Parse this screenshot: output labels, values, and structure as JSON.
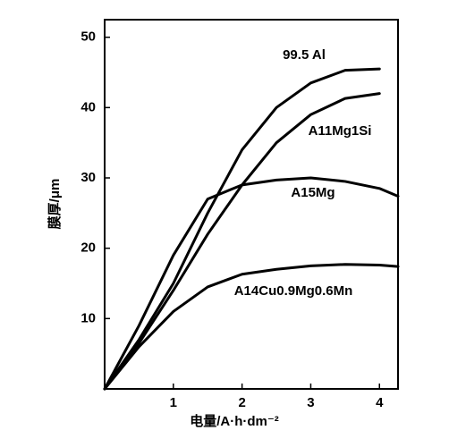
{
  "chart_data": {
    "type": "line",
    "x_label": "电量/A·h·dm⁻²",
    "y_label": "膜厚/μm",
    "x": [
      0,
      0.5,
      1,
      1.5,
      2,
      2.5,
      3,
      3.5,
      4,
      4.27
    ],
    "series": [
      {
        "name": "99.5 Al",
        "color": "#000000",
        "values": [
          0,
          7,
          15,
          25,
          34,
          40,
          43.5,
          45.3,
          45.5,
          null
        ]
      },
      {
        "name": "A11Mg1Si",
        "color": "#000000",
        "values": [
          0,
          6.5,
          14,
          22,
          29,
          35,
          39,
          41.3,
          42,
          null
        ]
      },
      {
        "name": "A15Mg",
        "color": "#000000",
        "values": [
          0,
          9,
          19,
          27,
          29,
          29.7,
          30,
          29.5,
          28.5,
          27.4
        ]
      },
      {
        "name": "A14Cu0.9Mg0.6Mn",
        "color": "#000000",
        "values": [
          0,
          6,
          11,
          14.5,
          16.3,
          17,
          17.5,
          17.7,
          17.6,
          17.4
        ]
      }
    ],
    "xlim": [
      0,
      4.27
    ],
    "ylim": [
      0,
      52.5
    ],
    "xticks": [
      1,
      2,
      3,
      4
    ],
    "yticks": [
      10,
      20,
      30,
      40,
      50
    ]
  }
}
